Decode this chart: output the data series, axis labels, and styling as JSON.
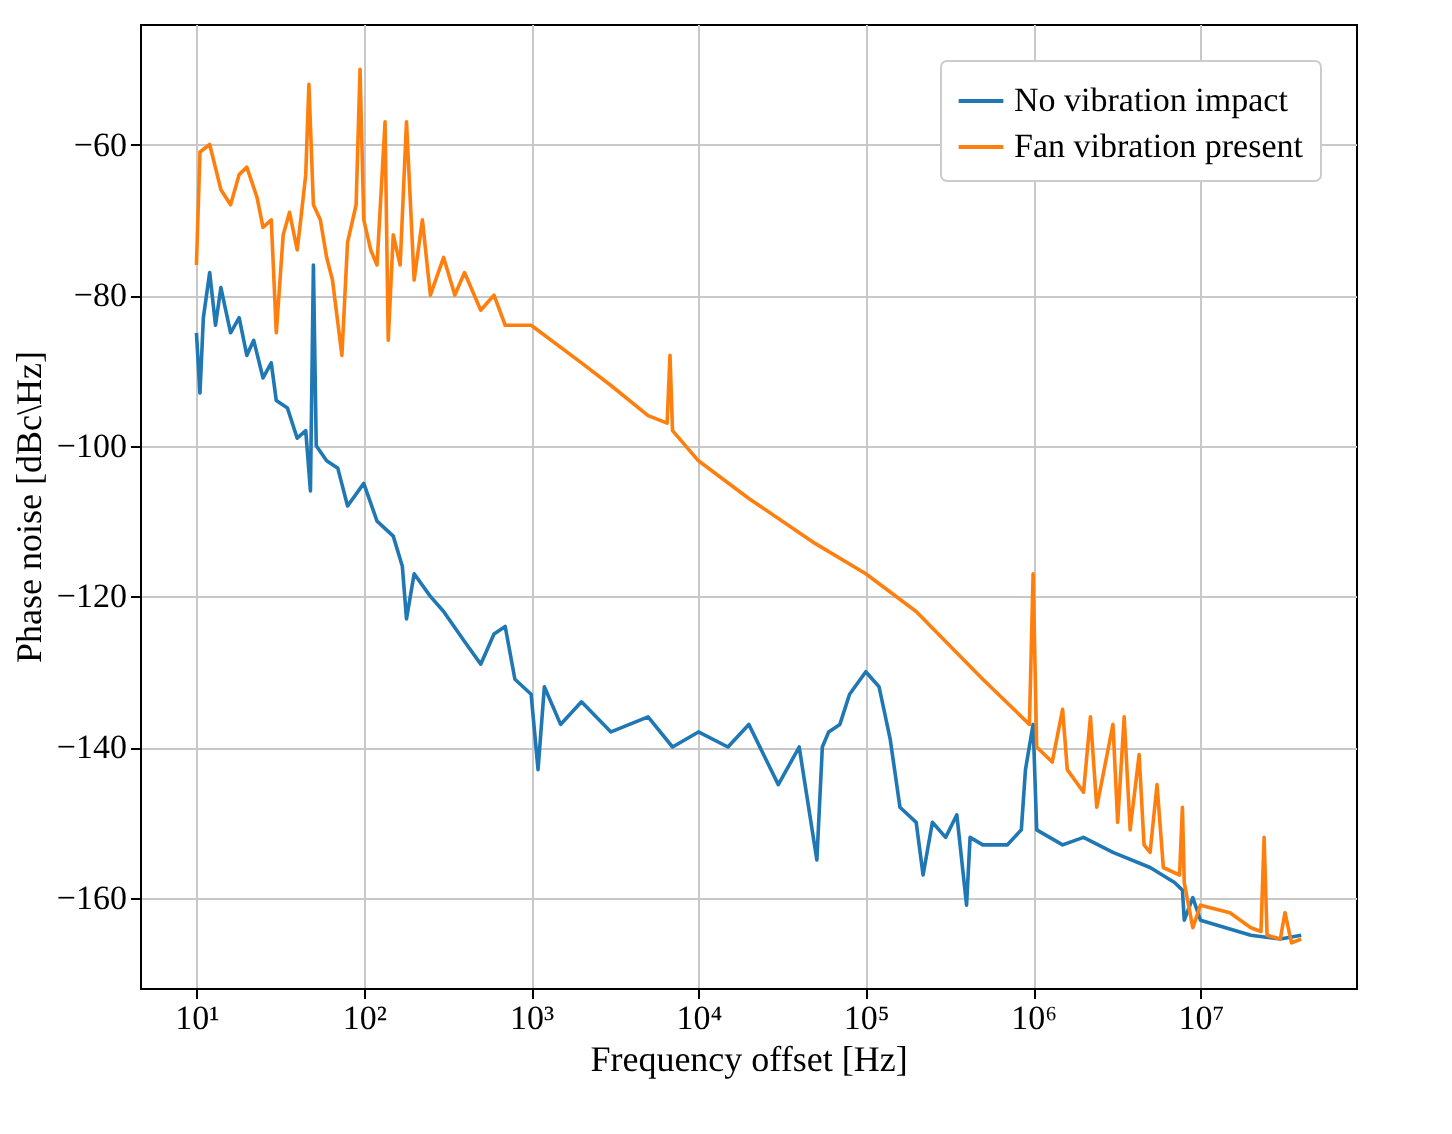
{
  "chart_data": {
    "type": "line",
    "xlabel": "Frequency offset [Hz]",
    "ylabel": "Phase noise [dBc\\Hz]",
    "log": "x",
    "grid": true,
    "legend": "top right",
    "line_style": "solid",
    "marker": "none",
    "xlim": [
      4.6,
      85000000
    ],
    "ylim": [
      -172,
      -44
    ],
    "xticks": [
      {
        "value": 10,
        "label": "10¹"
      },
      {
        "value": 100,
        "label": "10²"
      },
      {
        "value": 1000,
        "label": "10³"
      },
      {
        "value": 10000,
        "label": "10⁴"
      },
      {
        "value": 100000,
        "label": "10⁵"
      },
      {
        "value": 1000000,
        "label": "10⁶"
      },
      {
        "value": 10000000,
        "label": "10⁷"
      }
    ],
    "yticks": [
      -60,
      -80,
      -100,
      -120,
      -140,
      -160
    ],
    "series": [
      {
        "name": "No vibration impact",
        "color": "#1f77b4",
        "x": [
          10,
          10.5,
          11,
          12,
          13,
          14,
          16,
          18,
          20,
          22,
          25,
          28,
          30,
          35,
          40,
          45,
          48,
          50,
          52,
          60,
          70,
          80,
          100,
          120,
          150,
          170,
          180,
          200,
          250,
          300,
          400,
          500,
          600,
          700,
          800,
          1000,
          1100,
          1200,
          1500,
          2000,
          3000,
          5000,
          7000,
          10000,
          15000,
          20000,
          30000,
          40000,
          51000,
          55000,
          60000,
          70000,
          80000,
          100000,
          120000,
          140000,
          160000,
          200000,
          220000,
          250000,
          300000,
          350000,
          400000,
          420000,
          500000,
          700000,
          850000,
          900000,
          1000000,
          1050000,
          1500000,
          2000000,
          3000000,
          5000000,
          7000000,
          7800000,
          8000000,
          9000000,
          10000000,
          20000000,
          30000000,
          40000000
        ],
        "values": [
          -85,
          -93,
          -83,
          -77,
          -84,
          -79,
          -85,
          -83,
          -88,
          -86,
          -91,
          -89,
          -94,
          -95,
          -99,
          -98,
          -106,
          -76,
          -100,
          -102,
          -103,
          -108,
          -105,
          -110,
          -112,
          -116,
          -123,
          -117,
          -120,
          -122,
          -126,
          -129,
          -125,
          -124,
          -131,
          -133,
          -143,
          -132,
          -137,
          -134,
          -138,
          -136,
          -140,
          -138,
          -140,
          -137,
          -145,
          -140,
          -155,
          -140,
          -138,
          -137,
          -133,
          -130,
          -132,
          -139,
          -148,
          -150,
          -157,
          -150,
          -152,
          -149,
          -161,
          -152,
          -153,
          -153,
          -151,
          -143,
          -137,
          -151,
          -153,
          -152,
          -154,
          -156,
          -158,
          -159,
          -163,
          -160,
          -163,
          -165,
          -165.5,
          -165
        ]
      },
      {
        "name": "Fan vibration present",
        "color": "#ff7f0e",
        "x": [
          10,
          10.5,
          12,
          14,
          16,
          18,
          20,
          23,
          25,
          28,
          30,
          33,
          36,
          40,
          42,
          45,
          47,
          50,
          55,
          60,
          65,
          74,
          80,
          90,
          95,
          100,
          110,
          120,
          134,
          140,
          150,
          165,
          180,
          200,
          224,
          250,
          300,
          350,
          400,
          500,
          600,
          700,
          800,
          1000,
          2000,
          3000,
          5000,
          6500,
          6760,
          7000,
          10000,
          20000,
          50000,
          100000,
          200000,
          500000,
          950000,
          1000000,
          1050000,
          1300000,
          1500000,
          1600000,
          2000000,
          2200000,
          2400000,
          3000000,
          3200000,
          3500000,
          3800000,
          4300000,
          4600000,
          5000000,
          5500000,
          6000000,
          7500000,
          7800000,
          8000000,
          9000000,
          10000000,
          15000000,
          20000000,
          23000000,
          24000000,
          25000000,
          30000000,
          32000000,
          35000000,
          40000000
        ],
        "values": [
          -76,
          -61,
          -60,
          -66,
          -68,
          -64,
          -63,
          -67,
          -71,
          -70,
          -85,
          -72,
          -69,
          -74,
          -70,
          -64,
          -52,
          -68,
          -70,
          -75,
          -78,
          -88,
          -73,
          -68,
          -50,
          -70,
          -74,
          -76,
          -57,
          -86,
          -72,
          -76,
          -57,
          -78,
          -70,
          -80,
          -75,
          -80,
          -77,
          -82,
          -80,
          -84,
          -84,
          -84,
          -89,
          -92,
          -96,
          -97,
          -88,
          -98,
          -102,
          -107,
          -113,
          -117,
          -122,
          -131,
          -137,
          -117,
          -140,
          -142,
          -135,
          -143,
          -146,
          -136,
          -148,
          -137,
          -150,
          -136,
          -151,
          -141,
          -153,
          -154,
          -145,
          -156,
          -157,
          -148,
          -158,
          -164,
          -161,
          -162,
          -164,
          -164.5,
          -152,
          -165,
          -165.5,
          -162,
          -166,
          -165.5
        ]
      }
    ]
  }
}
